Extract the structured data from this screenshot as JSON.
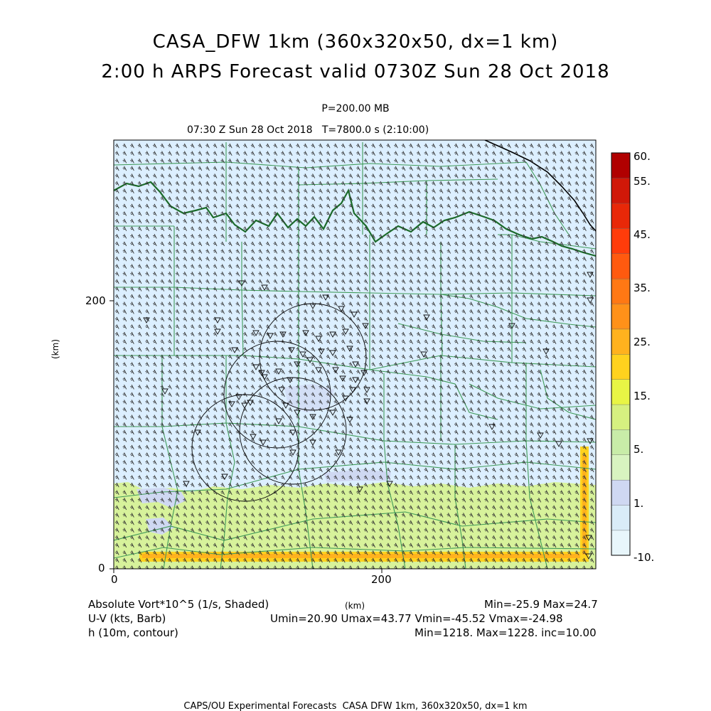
{
  "titles": {
    "line1": "CASA_DFW 1km (360x320x50, dx=1 km)",
    "line2": "2:00 h ARPS Forecast valid 0730Z Sun 28 Oct 2018",
    "pressure": "P=200.00 MB",
    "time": "07:30 Z Sun 28 Oct 2018   T=7800.0 s (2:10:00)"
  },
  "axes": {
    "x_ticks": [
      "0",
      "200"
    ],
    "y_ticks": [
      "0",
      "200"
    ],
    "x_label": "(km)",
    "y_label": "(km)"
  },
  "colorbar": {
    "labels": [
      "60.",
      "55.",
      "45.",
      "35.",
      "25.",
      "15.",
      "5.",
      "1.",
      "-10."
    ],
    "colors": [
      "#e8f6fb",
      "#d9ecf8",
      "#cfd8f2",
      "#d8f3c0",
      "#c8eca8",
      "#d6f080",
      "#e8f545",
      "#ffd21e",
      "#ffb21e",
      "#ff9119",
      "#ff7814",
      "#ff5a0f",
      "#ff3c0a",
      "#e82808",
      "#d01808",
      "#b00000"
    ]
  },
  "legend": {
    "field1": "Absolute Vort*10^5 (1/s, Shaded)",
    "field2": "U-V (kts, Barb)",
    "field3": "h (10m, contour)",
    "stats1": "Min=-25.9 Max=24.7",
    "stats2": "Umin=20.90 Umax=43.77 Vmin=-45.52 Vmax=-24.98",
    "stats3": "Min=1218. Max=1228. inc=10.00"
  },
  "footer": "CAPS/OU Experimental Forecasts  CASA DFW 1km, 360x320x50, dx=1 km"
}
